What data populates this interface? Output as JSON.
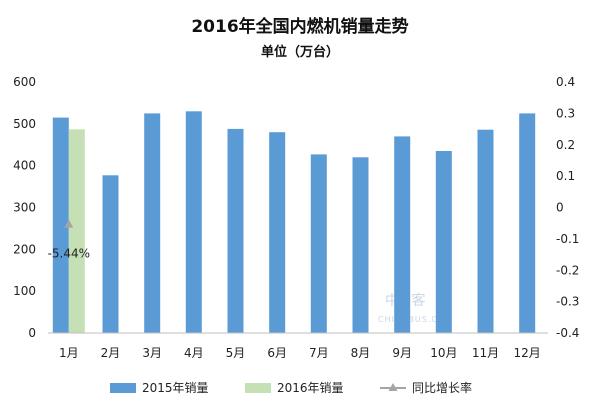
{
  "chart_data": {
    "type": "bar",
    "title": "2016年全国内燃机销量走势",
    "subtitle": "单位（万台）",
    "categories": [
      "1月",
      "2月",
      "3月",
      "4月",
      "5月",
      "6月",
      "7月",
      "8月",
      "9月",
      "10月",
      "11月",
      "12月"
    ],
    "series": [
      {
        "name": "2015年销量",
        "axis": "left",
        "kind": "bar",
        "color": "#5b9bd5",
        "values": [
          515,
          377,
          525,
          530,
          488,
          480,
          427,
          420,
          470,
          435,
          486,
          525
        ]
      },
      {
        "name": "2016年销量",
        "axis": "left",
        "kind": "bar",
        "color": "#c5e0b4",
        "values": [
          487,
          null,
          null,
          null,
          null,
          null,
          null,
          null,
          null,
          null,
          null,
          null
        ]
      },
      {
        "name": "同比增长率",
        "axis": "right",
        "kind": "line",
        "color": "#a5a5a5",
        "values": [
          -0.0544,
          null,
          null,
          null,
          null,
          null,
          null,
          null,
          null,
          null,
          null,
          null
        ]
      }
    ],
    "y_left": {
      "min": 0,
      "max": 600,
      "ticks": [
        "0",
        "100",
        "200",
        "300",
        "400",
        "500",
        "600"
      ]
    },
    "y_right": {
      "min": -0.4,
      "max": 0.4,
      "ticks": [
        "-0.4",
        "-0.3",
        "-0.2",
        "-0.1",
        "0",
        "0.1",
        "0.2",
        "0.3",
        "0.4"
      ]
    },
    "annotations": [
      {
        "category": "1月",
        "text": "-5.44%"
      }
    ],
    "grid": false,
    "legend_position": "bottom"
  },
  "watermark": {
    "text": "中 客 网",
    "sub": "CHINABUS.COM"
  }
}
